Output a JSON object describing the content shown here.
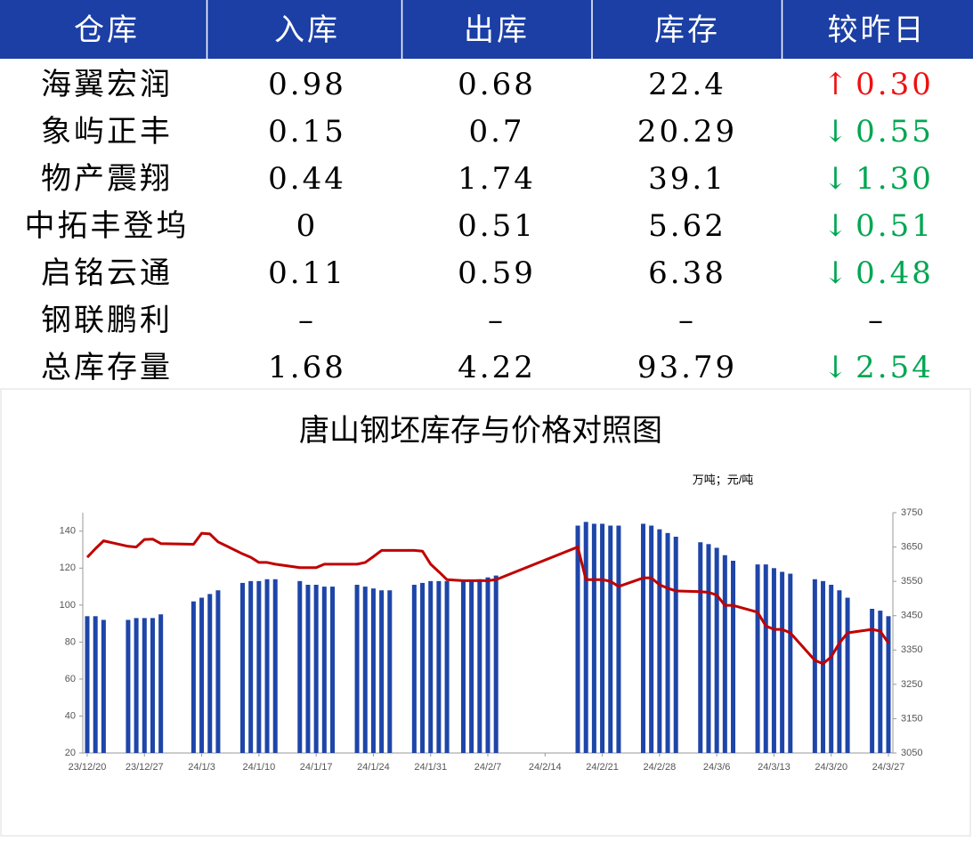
{
  "table": {
    "header": [
      "仓库",
      "入库",
      "出库",
      "库存",
      "较昨日"
    ],
    "rows": [
      {
        "cells": [
          "海翼宏润",
          "0.98",
          "0.68",
          "22.4",
          "0.30"
        ],
        "arrow": "↑",
        "color": "#ee1111"
      },
      {
        "cells": [
          "象屿正丰",
          "0.15",
          "0.7",
          "20.29",
          "0.55"
        ],
        "arrow": "↓",
        "color": "#00a651"
      },
      {
        "cells": [
          "物产震翔",
          "0.44",
          "1.74",
          "39.1",
          "1.30"
        ],
        "arrow": "↓",
        "color": "#00a651"
      },
      {
        "cells": [
          "中拓丰登坞",
          "0",
          "0.51",
          "5.62",
          "0.51"
        ],
        "arrow": "↓",
        "color": "#00a651"
      },
      {
        "cells": [
          "启铭云通",
          "0.11",
          "0.59",
          "6.38",
          "0.48"
        ],
        "arrow": "↓",
        "color": "#00a651"
      },
      {
        "cells": [
          "钢联鹏利",
          "–",
          "–",
          "–",
          "–"
        ]
      },
      {
        "cells": [
          "总库存量",
          "1.68",
          "4.22",
          "93.79",
          "2.54"
        ],
        "arrow": "↓",
        "color": "#00a651"
      }
    ]
  },
  "chart_data": {
    "type": "bar-line",
    "title": "唐山钢坯库存与价格对照图",
    "unit": "万吨；元/吨",
    "x": [
      "23/12/20",
      "23/12/21",
      "23/12/22",
      "23/12/25",
      "23/12/26",
      "23/12/27",
      "23/12/28",
      "23/12/29",
      "24/1/2",
      "24/1/3",
      "24/1/4",
      "24/1/5",
      "24/1/8",
      "24/1/9",
      "24/1/10",
      "24/1/11",
      "24/1/12",
      "24/1/15",
      "24/1/16",
      "24/1/17",
      "24/1/18",
      "24/1/19",
      "24/1/22",
      "24/1/23",
      "24/1/24",
      "24/1/25",
      "24/1/26",
      "24/1/29",
      "24/1/30",
      "24/1/31",
      "24/2/1",
      "24/2/2",
      "24/2/4",
      "24/2/5",
      "24/2/6",
      "24/2/7",
      "24/2/8",
      "24/2/18",
      "24/2/19",
      "24/2/20",
      "24/2/21",
      "24/2/22",
      "24/2/23",
      "24/2/26",
      "24/2/27",
      "24/2/28",
      "24/2/29",
      "24/3/1",
      "24/3/4",
      "24/3/5",
      "24/3/6",
      "24/3/7",
      "24/3/8",
      "24/3/11",
      "24/3/12",
      "24/3/13",
      "24/3/14",
      "24/3/15",
      "24/3/18",
      "24/3/19",
      "24/3/20",
      "24/3/21",
      "24/3/22",
      "24/3/25",
      "24/3/26",
      "24/3/27"
    ],
    "series": [
      {
        "type": "bar",
        "color": "#1e45a8",
        "values": [
          94,
          94,
          92,
          92,
          93,
          93,
          93,
          95,
          102,
          104,
          106,
          108,
          112,
          113,
          113,
          114,
          114,
          113,
          111,
          111,
          110,
          110,
          111,
          110,
          109,
          108,
          108,
          111,
          112,
          113,
          113,
          113,
          113,
          113,
          114,
          115,
          116,
          143,
          145,
          144,
          144,
          143,
          143,
          144,
          143,
          141,
          139,
          137,
          134,
          133,
          131,
          127,
          124,
          122,
          122,
          120,
          118,
          117,
          114,
          113,
          111,
          108,
          104,
          98,
          97,
          94
        ]
      },
      {
        "type": "line",
        "axis": "y2",
        "color": "#c00000",
        "values": [
          3620,
          3645,
          3668,
          3652,
          3650,
          3672,
          3673,
          3660,
          3658,
          3690,
          3688,
          3665,
          3630,
          3620,
          3605,
          3605,
          3600,
          3590,
          3590,
          3590,
          3600,
          3600,
          3600,
          3605,
          3622,
          3640,
          3640,
          3640,
          3638,
          3600,
          3578,
          3555,
          3552,
          3552,
          3552,
          3552,
          3555,
          3650,
          3555,
          3555,
          3555,
          3550,
          3535,
          3560,
          3560,
          3540,
          3530,
          3522,
          3520,
          3518,
          3510,
          3480,
          3480,
          3460,
          3420,
          3410,
          3410,
          3400,
          3320,
          3310,
          3330,
          3370,
          3400,
          3410,
          3405,
          3370
        ]
      }
    ],
    "xticks": [
      "23/12/20",
      "23/12/27",
      "24/1/3",
      "24/1/10",
      "24/1/17",
      "24/1/24",
      "24/1/31",
      "24/2/7",
      "24/2/14",
      "24/2/21",
      "24/2/28",
      "24/3/6",
      "24/3/13",
      "24/3/20",
      "24/3/27"
    ],
    "ylim": [
      20,
      150
    ],
    "yticks": [
      20,
      40,
      60,
      80,
      100,
      120,
      140
    ],
    "y2lim": [
      3050,
      3750
    ],
    "y2ticks": [
      3050,
      3150,
      3250,
      3350,
      3450,
      3550,
      3650,
      3750
    ]
  }
}
